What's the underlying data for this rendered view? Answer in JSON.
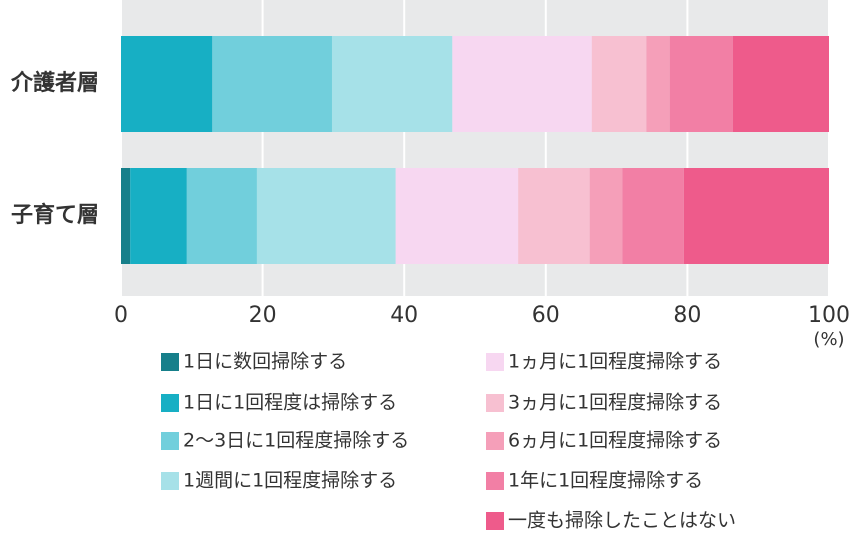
{
  "chart_data": {
    "type": "stacked-bar-horizontal",
    "categories": [
      "介護者層",
      "子育て層"
    ],
    "series": [
      {
        "name": "1日に数回掃除する",
        "color": "#167f8a",
        "values": [
          0,
          1.3
        ]
      },
      {
        "name": "1日に1回程度は掃除する",
        "color": "#17afc4",
        "values": [
          12.9,
          8.0
        ]
      },
      {
        "name": "2〜3日に1回程度掃除する",
        "color": "#71cfdc",
        "values": [
          16.9,
          9.9
        ]
      },
      {
        "name": "1週間に1回程度掃除する",
        "color": "#a6e1e8",
        "values": [
          17.0,
          19.6
        ]
      },
      {
        "name": "1ヵ月に1回程度掃除する",
        "color": "#f7d7f1",
        "values": [
          19.7,
          17.3
        ]
      },
      {
        "name": "3ヵ月に1回程度掃除する",
        "color": "#f7c0d1",
        "values": [
          7.7,
          10.1
        ]
      },
      {
        "name": "6ヵ月に1回程度掃除する",
        "color": "#f59fb9",
        "values": [
          3.3,
          4.6
        ]
      },
      {
        "name": "1年に1回程度掃除する",
        "color": "#f27fa5",
        "values": [
          8.9,
          8.7
        ]
      },
      {
        "name": "一度も掃除したことはない",
        "color": "#ee5b8b",
        "values": [
          13.6,
          20.5
        ]
      }
    ],
    "xlim": [
      0,
      100
    ],
    "xticks": [
      0,
      20,
      40,
      60,
      80,
      100
    ],
    "x_unit": "(%)",
    "grid": true
  }
}
